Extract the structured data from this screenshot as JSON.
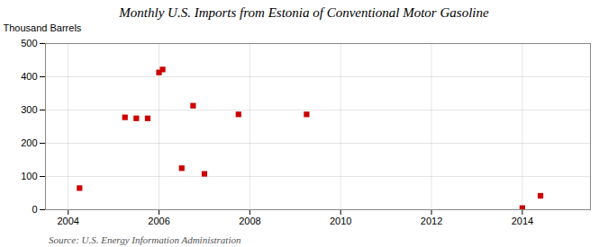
{
  "chart_data": {
    "type": "scatter",
    "title": "Monthly U.S. Imports from Estonia of Conventional Motor Gasoline",
    "ylabel": "Thousand Barrels",
    "source": "Source: U.S. Energy Information Administration",
    "x": [
      2004.25,
      2005.25,
      2005.5,
      2005.75,
      2006.0,
      2006.08,
      2006.5,
      2006.75,
      2007.0,
      2007.75,
      2009.25,
      2014.0,
      2014.4
    ],
    "values": [
      65,
      278,
      275,
      275,
      413,
      422,
      125,
      313,
      108,
      287,
      287,
      5,
      42
    ],
    "color": "#cc0000",
    "marker": "square",
    "xlim": [
      2003.5,
      2015.5
    ],
    "xticks": [
      2004,
      2006,
      2008,
      2010,
      2012,
      2014
    ],
    "ylim": [
      0,
      500
    ],
    "yticks": [
      0,
      100,
      200,
      300,
      400,
      500
    ],
    "grid": true
  }
}
